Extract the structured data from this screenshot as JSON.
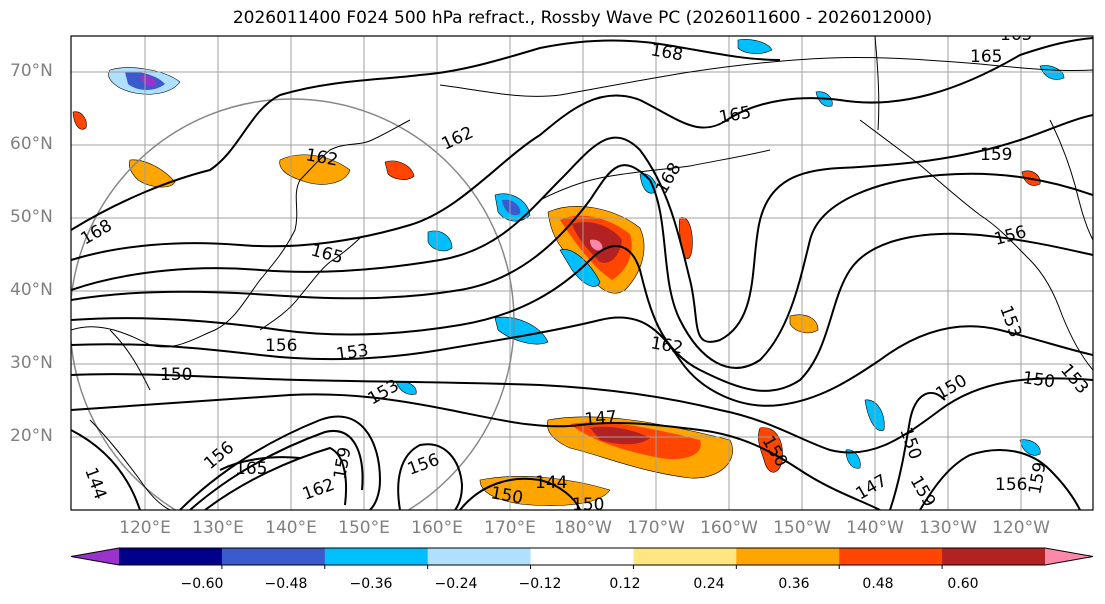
{
  "title": "2026011400 F024 500 hPa refract., Rossby Wave PC (2026011600 - 2026012000)",
  "lat_labels": [
    "70°N",
    "60°N",
    "50°N",
    "40°N",
    "30°N",
    "20°N"
  ],
  "lon_labels": [
    "120°E",
    "130°E",
    "140°E",
    "150°E",
    "160°E",
    "170°E",
    "180°W",
    "170°W",
    "160°W",
    "150°W",
    "140°W",
    "130°W",
    "120°W"
  ],
  "colorbar": {
    "ticks": [
      "−0.60",
      "−0.48",
      "−0.36",
      "−0.24",
      "−0.12",
      "0.12",
      "0.24",
      "0.36",
      "0.48",
      "0.60"
    ],
    "colors": [
      "#9933cc",
      "#00008b",
      "#3a5acd",
      "#00bfff",
      "#b0e0ff",
      "#ffffff",
      "#ffe680",
      "#ffa500",
      "#ff4500",
      "#b22222",
      "#ff88aa"
    ]
  },
  "contour_labels": [
    "168",
    "165",
    "162",
    "162",
    "165",
    "168",
    "168",
    "165",
    "159",
    "156",
    "156",
    "153",
    "150",
    "153",
    "150",
    "147",
    "144",
    "150",
    "156",
    "159",
    "156",
    "159",
    "162",
    "165",
    "159",
    "156",
    "150",
    "147",
    "144",
    "153",
    "150",
    "162",
    "150",
    "165",
    "153",
    "150"
  ]
}
